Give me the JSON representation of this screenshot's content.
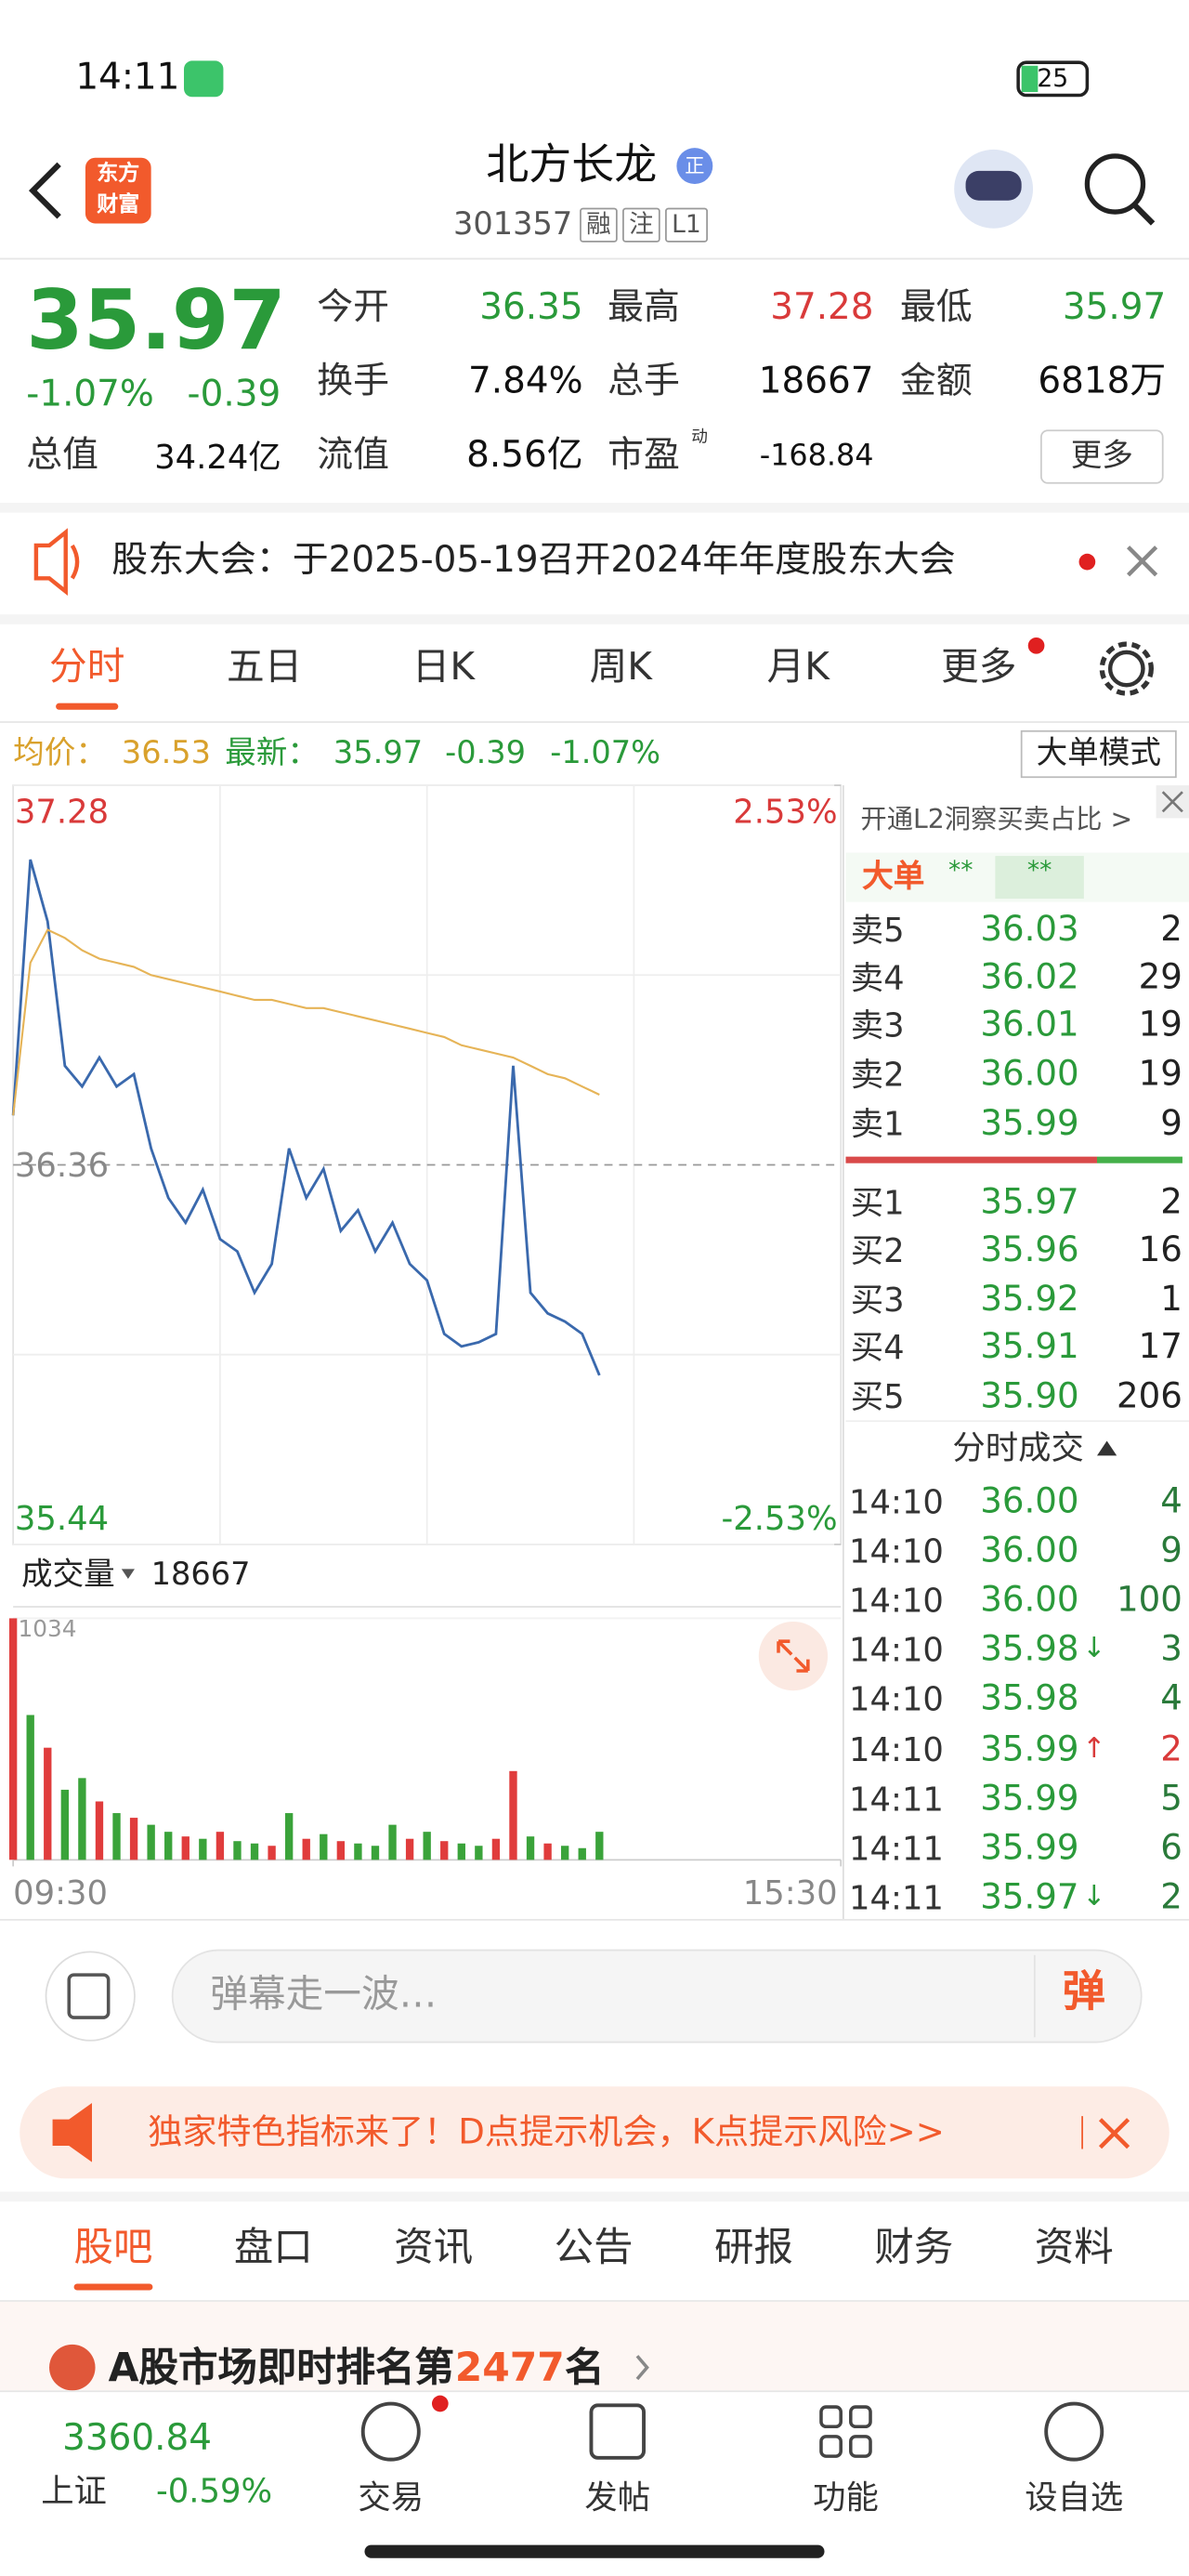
{
  "status_bar": {
    "time": "14:11",
    "battery": "25"
  },
  "header": {
    "logo": [
      "东方",
      "财富"
    ],
    "title": "北方长龙",
    "badge": "正",
    "code": "301357",
    "tags": [
      "融",
      "注",
      "L1"
    ]
  },
  "quote": {
    "price": "35.97",
    "change_pct": "-1.07%",
    "change": "-0.39",
    "open": {
      "label": "今开",
      "value": "36.35"
    },
    "high": {
      "label": "最高",
      "value": "37.28"
    },
    "low": {
      "label": "最低",
      "value": "35.97"
    },
    "turnover": {
      "label": "换手",
      "value": "7.84%"
    },
    "volume": {
      "label": "总手",
      "value": "18667"
    },
    "amount": {
      "label": "金额",
      "value": "6818万"
    },
    "market_cap": {
      "label": "总值",
      "value": "34.24亿"
    },
    "float_cap": {
      "label": "流值",
      "value": "8.56亿"
    },
    "pe": {
      "label": "市盈",
      "note": "动",
      "value": "-168.84"
    },
    "more": "更多"
  },
  "notice": "股东大会：于2025-05-19召开2024年年度股东大会",
  "tabs": {
    "items": [
      "分时",
      "五日",
      "日K",
      "周K",
      "月K",
      "更多"
    ],
    "active": 0
  },
  "info": {
    "avg_label": "均价：",
    "avg": "36.53",
    "latest_label": "最新：",
    "latest": "35.97",
    "change": "-0.39",
    "change_pct": "-1.07%",
    "mode": "大单模式"
  },
  "chart_data": [
    {
      "type": "line",
      "x": [
        0,
        5,
        10,
        15,
        20,
        25,
        30,
        35,
        40,
        45,
        50,
        55,
        60,
        65,
        70,
        75,
        80,
        85,
        90,
        95,
        100,
        105,
        110,
        115,
        120,
        125,
        130,
        135,
        140,
        145,
        150,
        155,
        160,
        165,
        170
      ],
      "xlim": [
        0,
        240
      ],
      "ylim": [
        35.44,
        37.28
      ],
      "yticks": [
        37.28,
        36.36,
        35.44
      ],
      "y2lim": [
        -2.53,
        2.53
      ],
      "y2ticks": [
        {
          "value": 2.53,
          "label": "2.53%"
        },
        {
          "value": -2.53,
          "label": "-2.53%"
        }
      ],
      "series": [
        {
          "color": "#3a69ad",
          "values": [
            36.48,
            37.1,
            36.95,
            36.6,
            36.55,
            36.62,
            36.55,
            36.58,
            36.4,
            36.28,
            36.22,
            36.3,
            36.18,
            36.15,
            36.05,
            36.12,
            36.4,
            36.28,
            36.35,
            36.2,
            36.25,
            36.15,
            36.22,
            36.12,
            36.08,
            35.95,
            35.92,
            35.93,
            35.95,
            36.6,
            36.05,
            36.0,
            35.98,
            35.95,
            35.85
          ]
        },
        {
          "color": "#e6b457",
          "values": [
            36.48,
            36.85,
            36.93,
            36.91,
            36.88,
            36.86,
            36.85,
            36.84,
            36.82,
            36.81,
            36.8,
            36.79,
            36.78,
            36.77,
            36.76,
            36.76,
            36.75,
            36.74,
            36.74,
            36.73,
            36.72,
            36.71,
            36.7,
            36.69,
            36.68,
            36.67,
            36.65,
            36.64,
            36.63,
            36.62,
            36.6,
            36.58,
            36.57,
            36.55,
            36.53
          ]
        }
      ]
    },
    {
      "type": "bar",
      "title": "成交量",
      "total": "18667",
      "x": [
        0,
        5,
        10,
        15,
        20,
        25,
        30,
        35,
        40,
        45,
        50,
        55,
        60,
        65,
        70,
        75,
        80,
        85,
        90,
        95,
        100,
        105,
        110,
        115,
        120,
        125,
        130,
        135,
        140,
        145,
        150,
        155,
        160,
        165,
        170
      ],
      "xlim": [
        0,
        240
      ],
      "xticks": [
        {
          "value": 0,
          "label": "09:30"
        },
        {
          "value": 240,
          "label": "15:30"
        }
      ],
      "ylim": [
        0,
        1034
      ],
      "yticks": [
        1034
      ],
      "values": [
        1034,
        620,
        480,
        300,
        350,
        250,
        200,
        180,
        150,
        120,
        100,
        90,
        120,
        80,
        70,
        60,
        200,
        90,
        110,
        80,
        70,
        60,
        150,
        90,
        120,
        80,
        70,
        60,
        90,
        380,
        100,
        70,
        60,
        50,
        120
      ],
      "colors": [
        "#e03c3c",
        "#3aa33a",
        "#e03c3c",
        "#3aa33a",
        "#3aa33a",
        "#e03c3c",
        "#3aa33a",
        "#e03c3c",
        "#3aa33a",
        "#3aa33a",
        "#e03c3c",
        "#3aa33a",
        "#e03c3c",
        "#3aa33a",
        "#3aa33a",
        "#e03c3c",
        "#3aa33a",
        "#e03c3c",
        "#3aa33a",
        "#e03c3c",
        "#3aa33a",
        "#3aa33a",
        "#3aa33a",
        "#e03c3c",
        "#3aa33a",
        "#e03c3c",
        "#3aa33a",
        "#3aa33a",
        "#e03c3c",
        "#e03c3c",
        "#3aa33a",
        "#e03c3c",
        "#3aa33a",
        "#3aa33a",
        "#3aa33a"
      ]
    }
  ],
  "order_book": {
    "promo": "开通L2洞察买卖占比 >",
    "big_label": "大单",
    "big_values": [
      "**",
      "**"
    ],
    "asks": [
      {
        "label": "卖5",
        "price": "36.03",
        "volume": "2"
      },
      {
        "label": "卖4",
        "price": "36.02",
        "volume": "29"
      },
      {
        "label": "卖3",
        "price": "36.01",
        "volume": "19"
      },
      {
        "label": "卖2",
        "price": "36.00",
        "volume": "19"
      },
      {
        "label": "卖1",
        "price": "35.99",
        "volume": "9"
      }
    ],
    "bids": [
      {
        "label": "买1",
        "price": "35.97",
        "volume": "2"
      },
      {
        "label": "买2",
        "price": "35.96",
        "volume": "16"
      },
      {
        "label": "买3",
        "price": "35.92",
        "volume": "1"
      },
      {
        "label": "买4",
        "price": "35.91",
        "volume": "17"
      },
      {
        "label": "买5",
        "price": "35.90",
        "volume": "206"
      }
    ]
  },
  "trades": {
    "title": "分时成交",
    "rows": [
      {
        "time": "14:10",
        "price": "36.00",
        "volume": "4"
      },
      {
        "time": "14:10",
        "price": "36.00",
        "volume": "9"
      },
      {
        "time": "14:10",
        "price": "36.00",
        "volume": "100"
      },
      {
        "time": "14:10",
        "price": "35.98",
        "dir": "↓",
        "volume": "3"
      },
      {
        "time": "14:10",
        "price": "35.98",
        "volume": "4"
      },
      {
        "time": "14:10",
        "price": "35.99",
        "dir": "↑",
        "volume": "2"
      },
      {
        "time": "14:11",
        "price": "35.99",
        "volume": "5"
      },
      {
        "time": "14:11",
        "price": "35.99",
        "volume": "6"
      },
      {
        "time": "14:11",
        "price": "35.97",
        "dir": "↓",
        "volume": "2"
      }
    ]
  },
  "comment": {
    "placeholder": "弹幕走一波…",
    "button": "弹"
  },
  "banner": "独家特色指标来了！D点提示机会，K点提示风险>>",
  "bottom_tabs": {
    "items": [
      "股吧",
      "盘口",
      "资讯",
      "公告",
      "研报",
      "财务",
      "资料"
    ],
    "active": 0
  },
  "rank": {
    "prefix": "A股市场即时排名第",
    "value": "2477",
    "suffix": "名"
  },
  "nav": {
    "index": {
      "value": "3360.84",
      "name": "上证",
      "change": "-0.59%"
    },
    "items": [
      "交易",
      "发帖",
      "功能",
      "设自选"
    ]
  }
}
